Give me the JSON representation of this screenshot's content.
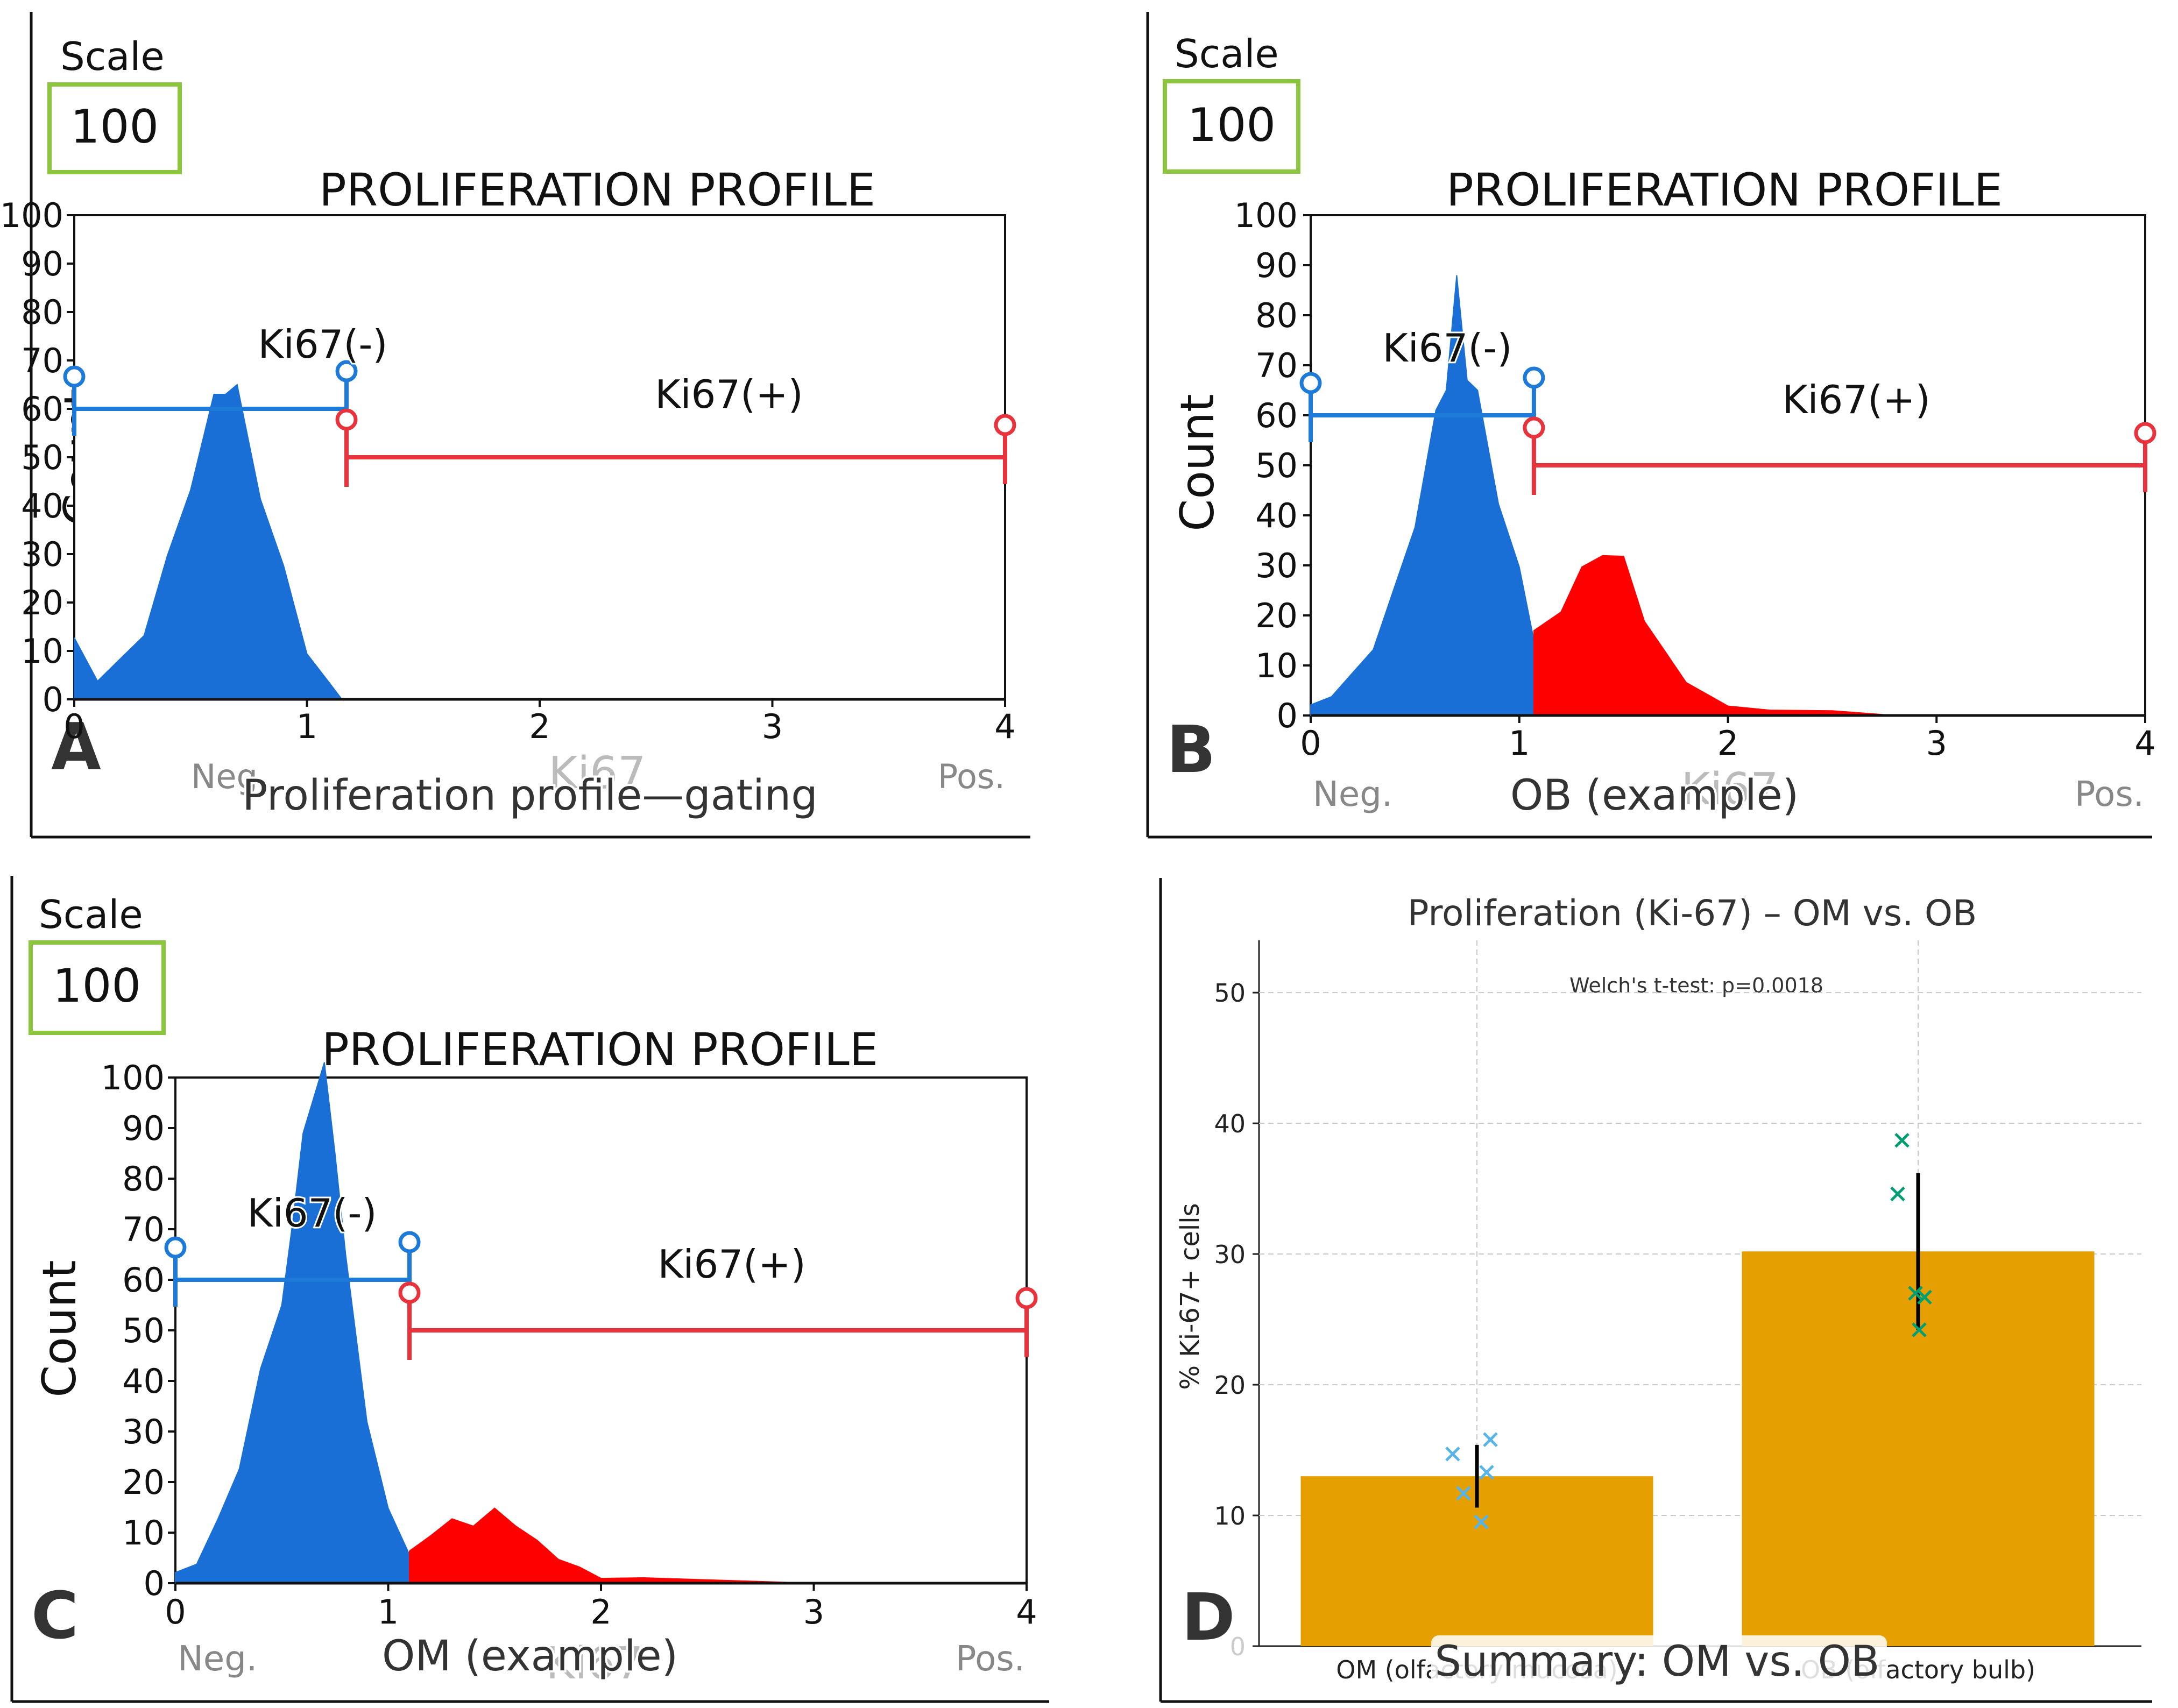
{
  "figure": {
    "panels": [
      {
        "letter": "A",
        "scale_label": "Scale",
        "scale_value": "100",
        "title": "PROLIFERATION PROFILE",
        "ylabel": "Count",
        "xlabel": "Ki67",
        "neg_label": "Neg.",
        "pos_label": "Pos.",
        "caption": "Proliferation profile—gating",
        "gate_neg_label": "Ki67(-)",
        "gate_pos_label": "Ki67(+)"
      },
      {
        "letter": "B",
        "scale_label": "Scale",
        "scale_value": "100",
        "title": "PROLIFERATION PROFILE",
        "ylabel": "Count",
        "xlabel": "Ki67",
        "neg_label": "Neg.",
        "pos_label": "Pos.",
        "caption": "OB (example)",
        "gate_neg_label": "Ki67(-)",
        "gate_pos_label": "Ki67(+)"
      },
      {
        "letter": "C",
        "scale_label": "Scale",
        "scale_value": "100",
        "title": "PROLIFERATION PROFILE",
        "ylabel": "Count",
        "xlabel": "Ki67",
        "neg_label": "Neg.",
        "pos_label": "Pos.",
        "caption": "OM (example)",
        "gate_neg_label": "Ki67(-)",
        "gate_pos_label": "Ki67(+)"
      },
      {
        "letter": "D",
        "caption": "Summary: OM vs. OB"
      }
    ]
  },
  "colors": {
    "negative": "#1a6fd6",
    "positive": "#ff0000",
    "gate_neg": "#1e7ad9",
    "gate_pos": "#e8323c",
    "scale_box": "#8cc63f",
    "bar": "#e69f00",
    "om_points": "#56b4e9",
    "ob_points": "#009e73"
  },
  "chart_data": [
    {
      "panel": "A",
      "type": "area",
      "title": "PROLIFERATION PROFILE",
      "xlabel": "Ki67",
      "ylabel": "Count",
      "xlim": [
        0,
        4
      ],
      "ylim": [
        0,
        100
      ],
      "xticks": [
        0,
        1,
        2,
        3,
        4
      ],
      "yticks": [
        0,
        10,
        20,
        30,
        40,
        50,
        60,
        70,
        80,
        90,
        100
      ],
      "gates": [
        {
          "name": "Ki67(-)",
          "x": [
            0,
            1.17
          ],
          "level": 60
        },
        {
          "name": "Ki67(+)",
          "x": [
            1.17,
            4
          ],
          "level": 50
        }
      ],
      "series": [
        {
          "name": "Ki67(-)",
          "x": [
            0,
            0.1,
            0.2,
            0.3,
            0.4,
            0.5,
            0.6,
            0.65,
            0.7,
            0.8,
            0.9,
            1.0,
            1.1,
            1.15
          ],
          "y": [
            12,
            4,
            8,
            14,
            28,
            46,
            60,
            66,
            62,
            44,
            26,
            10,
            3,
            0
          ]
        }
      ]
    },
    {
      "panel": "B",
      "type": "area",
      "title": "PROLIFERATION PROFILE",
      "xlabel": "Ki67",
      "ylabel": "Count",
      "xlim": [
        0,
        4
      ],
      "ylim": [
        0,
        100
      ],
      "xticks": [
        0,
        1,
        2,
        3,
        4
      ],
      "yticks": [
        0,
        10,
        20,
        30,
        40,
        50,
        60,
        70,
        80,
        90,
        100
      ],
      "gates": [
        {
          "name": "Ki67(-)",
          "x": [
            0,
            1.07
          ],
          "level": 60
        },
        {
          "name": "Ki67(+)",
          "x": [
            1.07,
            4
          ],
          "level": 50
        }
      ],
      "series": [
        {
          "name": "Ki67(-)",
          "x": [
            0,
            0.1,
            0.2,
            0.3,
            0.4,
            0.5,
            0.6,
            0.65,
            0.7,
            0.75,
            0.8,
            0.9,
            1.0,
            1.07
          ],
          "y": [
            2,
            4,
            8,
            14,
            24,
            40,
            58,
            68,
            85,
            70,
            62,
            45,
            28,
            16
          ]
        },
        {
          "name": "Ki67(+)",
          "x": [
            1.07,
            1.2,
            1.3,
            1.4,
            1.5,
            1.6,
            1.7,
            1.8,
            1.9,
            2.0,
            2.2,
            2.5,
            2.8
          ],
          "y": [
            16,
            22,
            28,
            34,
            30,
            20,
            12,
            7,
            4,
            2,
            1,
            1,
            0
          ]
        }
      ]
    },
    {
      "panel": "C",
      "type": "area",
      "title": "PROLIFERATION PROFILE",
      "xlabel": "Ki67",
      "ylabel": "Count",
      "xlim": [
        0,
        4
      ],
      "ylim": [
        0,
        100
      ],
      "xticks": [
        0,
        1,
        2,
        3,
        4
      ],
      "yticks": [
        0,
        10,
        20,
        30,
        40,
        50,
        60,
        70,
        80,
        90,
        100
      ],
      "gates": [
        {
          "name": "Ki67(-)",
          "x": [
            0,
            1.1
          ],
          "level": 60
        },
        {
          "name": "Ki67(+)",
          "x": [
            1.1,
            4
          ],
          "level": 50
        }
      ],
      "series": [
        {
          "name": "Ki67(-)",
          "x": [
            0,
            0.1,
            0.2,
            0.3,
            0.4,
            0.5,
            0.55,
            0.6,
            0.7,
            0.75,
            0.8,
            0.9,
            1.0,
            1.1
          ],
          "y": [
            2,
            4,
            12,
            24,
            40,
            58,
            68,
            92,
            100,
            88,
            62,
            34,
            14,
            6
          ]
        },
        {
          "name": "Ki67(+)",
          "x": [
            1.1,
            1.2,
            1.3,
            1.4,
            1.5,
            1.6,
            1.7,
            1.8,
            1.9,
            2.0,
            2.2,
            3.0
          ],
          "y": [
            6,
            10,
            12,
            12,
            14,
            12,
            8,
            5,
            3,
            1,
            1,
            0
          ]
        }
      ]
    },
    {
      "panel": "D",
      "type": "bar",
      "title": "Proliferation (Ki-67) – OM vs. OB",
      "annotation": "Welch's t-test: p=0.0018",
      "ylabel": "% Ki-67+ cells",
      "xlabel": "",
      "ylim": [
        0,
        54
      ],
      "yticks": [
        0,
        10,
        20,
        30,
        40,
        50
      ],
      "categories": [
        "OM (olfactory mucosa)",
        "OB (olfactory bulb)"
      ],
      "values": [
        13.0,
        30.2
      ],
      "errors": [
        2.4,
        6.0
      ],
      "points": [
        [
          14.7,
          15.8,
          11.7,
          13.3,
          9.5
        ],
        [
          38.7,
          34.6,
          27.0,
          26.7,
          24.2
        ]
      ]
    }
  ]
}
